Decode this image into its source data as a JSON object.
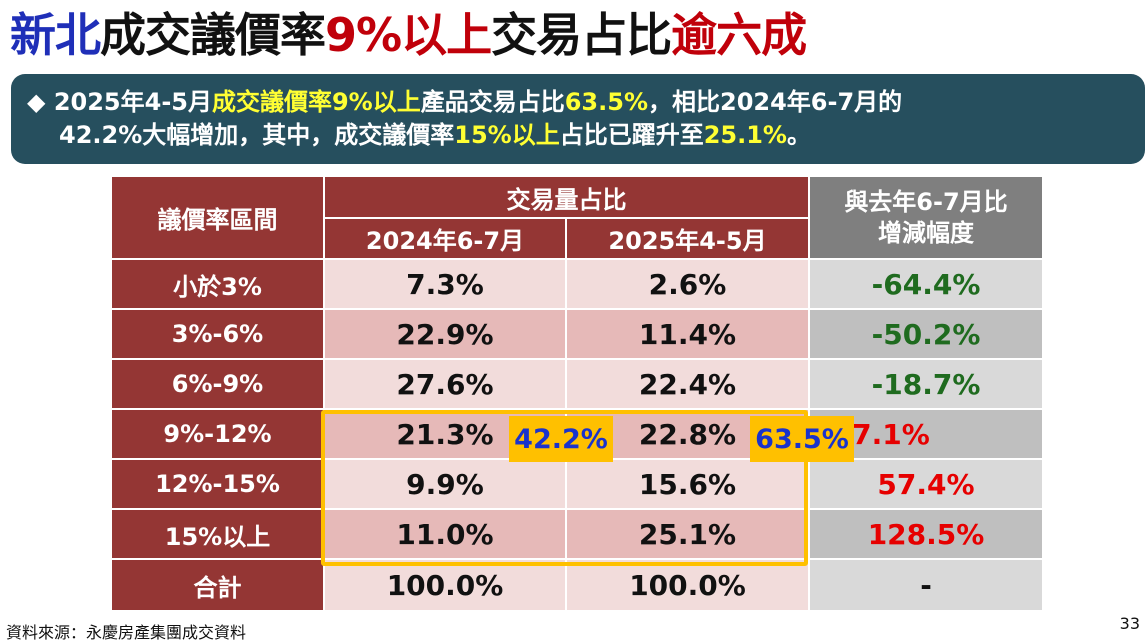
{
  "title": {
    "part1": "新北",
    "part2": "成交議價率",
    "part3": "9%以上",
    "part4": "交易占比",
    "part5": "逾六成"
  },
  "callout": {
    "bullet": "◆",
    "l1_a": "2025年4-5月",
    "l1_b": "成交議價率9%以上",
    "l1_c": "產品交易占比",
    "l1_d": "63.5%",
    "l1_e": "，相比2024年6-7月的",
    "l2_a": "42.2%大幅增加，其中，成交議價率",
    "l2_b": "15%以上",
    "l2_c": "占比已躍升至",
    "l2_d": "25.1%",
    "l2_e": "。"
  },
  "table": {
    "col_range": "議價率區間",
    "col_group": "交易量占比",
    "col_2024": "2024年6-7月",
    "col_2025": "2025年4-5月",
    "col_change_l1": "與去年6-7月比",
    "col_change_l2": "增減幅度",
    "rows": [
      {
        "range": "小於3%",
        "v2024": "7.3%",
        "v2025": "2.6%",
        "change": "-64.4%"
      },
      {
        "range": "3%-6%",
        "v2024": "22.9%",
        "v2025": "11.4%",
        "change": "-50.2%"
      },
      {
        "range": "6%-9%",
        "v2024": "27.6%",
        "v2025": "22.4%",
        "change": "-18.7%"
      },
      {
        "range": "9%-12%",
        "v2024": "21.3%",
        "v2025": "22.8%",
        "change": "7.1%"
      },
      {
        "range": "12%-15%",
        "v2024": "9.9%",
        "v2025": "15.6%",
        "change": "57.4%"
      },
      {
        "range": "15%以上",
        "v2024": "11.0%",
        "v2025": "25.1%",
        "change": "128.5%"
      },
      {
        "range": "合計",
        "v2024": "100.0%",
        "v2025": "100.0%",
        "change": "-"
      }
    ]
  },
  "badges": {
    "b2024": "42.2%",
    "b2025": "63.5%"
  },
  "footer": {
    "source": "資料來源：永慶房產集團成交資料",
    "page": "33"
  }
}
